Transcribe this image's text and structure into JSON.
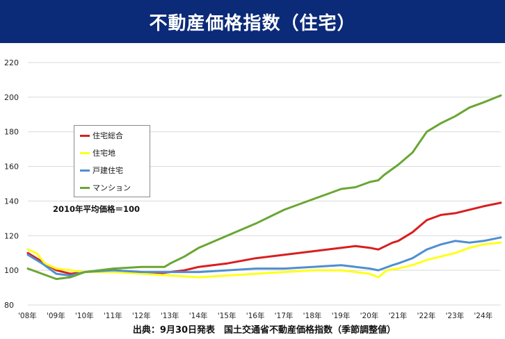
{
  "header": {
    "title": "不動産価格指数（住宅）"
  },
  "notes": {
    "base": "2010年平均価格＝100",
    "source": "出典：9月30日発表　国土交通省不動産価格指数（季節調整値）"
  },
  "chart_data": {
    "type": "line",
    "title": "不動産価格指数（住宅）",
    "xlabel": "",
    "ylabel": "",
    "ylim": [
      80,
      220
    ],
    "yticks": [
      80,
      100,
      120,
      140,
      160,
      180,
      200,
      220
    ],
    "xlim": [
      2008.0,
      2024.6
    ],
    "xticks": [
      {
        "value": 2008,
        "label": "'08年"
      },
      {
        "value": 2009,
        "label": "'09年"
      },
      {
        "value": 2010,
        "label": "'10年"
      },
      {
        "value": 2011,
        "label": "'11年"
      },
      {
        "value": 2012,
        "label": "'12年"
      },
      {
        "value": 2013,
        "label": "'13年"
      },
      {
        "value": 2014,
        "label": "'14年"
      },
      {
        "value": 2015,
        "label": "'15年"
      },
      {
        "value": 2016,
        "label": "'16年"
      },
      {
        "value": 2017,
        "label": "'17年"
      },
      {
        "value": 2018,
        "label": "'18年"
      },
      {
        "value": 2019,
        "label": "'19年"
      },
      {
        "value": 2020,
        "label": "'20年"
      },
      {
        "value": 2021,
        "label": "'21年"
      },
      {
        "value": 2022,
        "label": "'22年"
      },
      {
        "value": 2023,
        "label": "'23年"
      },
      {
        "value": 2024,
        "label": "'24年"
      }
    ],
    "grid": true,
    "legend_position": "upper-left",
    "series": [
      {
        "name": "住宅総合",
        "color": "#d91e1e",
        "points": [
          [
            2008.0,
            110
          ],
          [
            2008.5,
            105
          ],
          [
            2009.0,
            100
          ],
          [
            2009.5,
            98
          ],
          [
            2010.0,
            99
          ],
          [
            2011.0,
            100
          ],
          [
            2012.0,
            99
          ],
          [
            2012.5,
            98
          ],
          [
            2013.0,
            99
          ],
          [
            2013.5,
            100
          ],
          [
            2014.0,
            102
          ],
          [
            2015.0,
            104
          ],
          [
            2016.0,
            107
          ],
          [
            2017.0,
            109
          ],
          [
            2018.0,
            111
          ],
          [
            2019.0,
            113
          ],
          [
            2019.5,
            114
          ],
          [
            2020.0,
            113
          ],
          [
            2020.3,
            112
          ],
          [
            2020.8,
            116
          ],
          [
            2021.0,
            117
          ],
          [
            2021.5,
            122
          ],
          [
            2022.0,
            129
          ],
          [
            2022.5,
            132
          ],
          [
            2023.0,
            133
          ],
          [
            2023.5,
            135
          ],
          [
            2024.0,
            137
          ],
          [
            2024.6,
            139
          ]
        ]
      },
      {
        "name": "住宅地",
        "color": "#ffff1a",
        "points": [
          [
            2008.0,
            112
          ],
          [
            2008.3,
            110
          ],
          [
            2008.6,
            104
          ],
          [
            2009.0,
            101
          ],
          [
            2009.5,
            100
          ],
          [
            2010.0,
            99
          ],
          [
            2011.0,
            99
          ],
          [
            2012.0,
            98
          ],
          [
            2013.0,
            97
          ],
          [
            2014.0,
            96
          ],
          [
            2015.0,
            97
          ],
          [
            2016.0,
            98
          ],
          [
            2017.0,
            99
          ],
          [
            2018.0,
            100
          ],
          [
            2019.0,
            100
          ],
          [
            2019.5,
            99
          ],
          [
            2020.0,
            98
          ],
          [
            2020.3,
            96
          ],
          [
            2020.6,
            100
          ],
          [
            2021.0,
            101
          ],
          [
            2021.5,
            103
          ],
          [
            2022.0,
            106
          ],
          [
            2022.5,
            108
          ],
          [
            2023.0,
            110
          ],
          [
            2023.5,
            113
          ],
          [
            2024.0,
            115
          ],
          [
            2024.6,
            116
          ]
        ]
      },
      {
        "name": "戸建住宅",
        "color": "#4f8fd0",
        "points": [
          [
            2008.0,
            109
          ],
          [
            2008.5,
            104
          ],
          [
            2009.0,
            98
          ],
          [
            2009.5,
            97
          ],
          [
            2010.0,
            99
          ],
          [
            2011.0,
            100
          ],
          [
            2012.0,
            99
          ],
          [
            2013.0,
            99
          ],
          [
            2014.0,
            99
          ],
          [
            2015.0,
            100
          ],
          [
            2016.0,
            101
          ],
          [
            2017.0,
            101
          ],
          [
            2018.0,
            102
          ],
          [
            2019.0,
            103
          ],
          [
            2019.5,
            102
          ],
          [
            2020.0,
            101
          ],
          [
            2020.3,
            100
          ],
          [
            2020.8,
            103
          ],
          [
            2021.0,
            104
          ],
          [
            2021.5,
            107
          ],
          [
            2022.0,
            112
          ],
          [
            2022.5,
            115
          ],
          [
            2023.0,
            117
          ],
          [
            2023.5,
            116
          ],
          [
            2024.0,
            117
          ],
          [
            2024.6,
            119
          ]
        ]
      },
      {
        "name": "マンション",
        "color": "#6aa632",
        "points": [
          [
            2008.0,
            101
          ],
          [
            2008.5,
            98
          ],
          [
            2009.0,
            95
          ],
          [
            2009.5,
            96
          ],
          [
            2010.0,
            99
          ],
          [
            2011.0,
            101
          ],
          [
            2012.0,
            102
          ],
          [
            2012.8,
            102
          ],
          [
            2013.0,
            104
          ],
          [
            2013.5,
            108
          ],
          [
            2014.0,
            113
          ],
          [
            2015.0,
            120
          ],
          [
            2016.0,
            127
          ],
          [
            2017.0,
            135
          ],
          [
            2018.0,
            141
          ],
          [
            2018.5,
            144
          ],
          [
            2019.0,
            147
          ],
          [
            2019.5,
            148
          ],
          [
            2020.0,
            151
          ],
          [
            2020.3,
            152
          ],
          [
            2020.5,
            155
          ],
          [
            2021.0,
            161
          ],
          [
            2021.5,
            168
          ],
          [
            2022.0,
            180
          ],
          [
            2022.5,
            185
          ],
          [
            2023.0,
            189
          ],
          [
            2023.5,
            194
          ],
          [
            2024.0,
            197
          ],
          [
            2024.6,
            201
          ]
        ]
      }
    ]
  }
}
